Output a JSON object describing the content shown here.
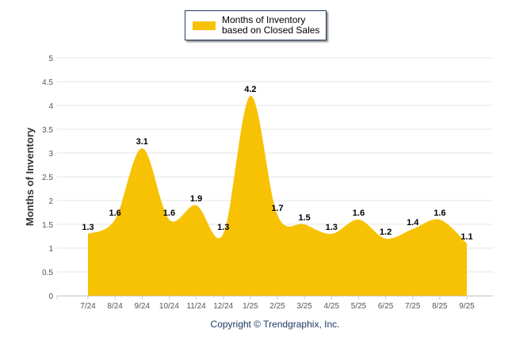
{
  "chart_data": {
    "type": "area",
    "title": "",
    "legend": [
      "Months of Inventory based on Closed Sales"
    ],
    "legend_placement": "top-center",
    "categories": [
      "7/24",
      "8/24",
      "9/24",
      "10/24",
      "11/24",
      "12/24",
      "1/25",
      "2/25",
      "3/25",
      "4/25",
      "5/25",
      "6/25",
      "7/25",
      "8/25",
      "9/25"
    ],
    "series": [
      {
        "name": "Months of Inventory based on Closed Sales",
        "values": [
          1.3,
          1.6,
          3.1,
          1.6,
          1.9,
          1.3,
          4.2,
          1.7,
          1.5,
          1.3,
          1.6,
          1.2,
          1.4,
          1.6,
          1.1
        ]
      }
    ],
    "ylabel": "Months of Inventory",
    "xlabel": "",
    "ylim": [
      0,
      5
    ],
    "yticks": [
      "0",
      "0.5",
      "1",
      "1.5",
      "2",
      "2.5",
      "3",
      "3.5",
      "4",
      "4.5",
      "5"
    ],
    "grid": true,
    "color": "#F7C204"
  },
  "footer": "Copyright © Trendgraphix, Inc."
}
